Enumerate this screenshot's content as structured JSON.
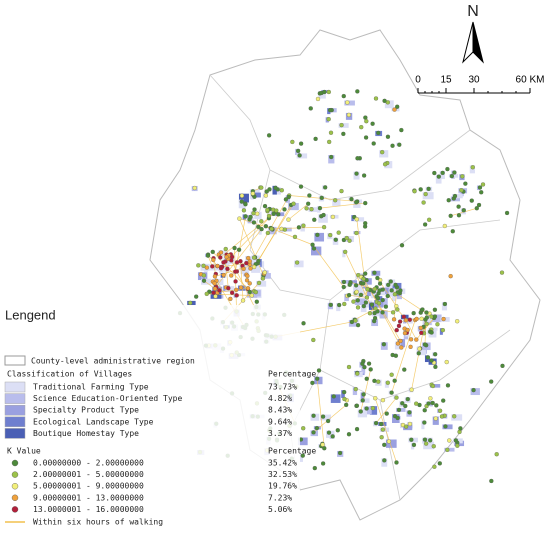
{
  "north_arrow": {
    "label": "N"
  },
  "scale_bar": {
    "labels": [
      "0",
      "15",
      "30",
      "60 KM"
    ]
  },
  "legend": {
    "title": "Lengend",
    "boundary": "County-level administrative region",
    "village_classification": {
      "title": "Classification of Villages",
      "percentage_header": "Percentage",
      "items": [
        {
          "label": "Traditional Farming Type",
          "percentage": "73.73%",
          "color": "#dcdff5"
        },
        {
          "label": "Science Education-Oriented Type",
          "percentage": "4.82%",
          "color": "#b9bdec"
        },
        {
          "label": "Specialty Product Type",
          "percentage": "8.43%",
          "color": "#9aa0e0"
        },
        {
          "label": "Ecological Landscape Type",
          "percentage": "9.64%",
          "color": "#6f7fcf"
        },
        {
          "label": "Boutique Homestay Type",
          "percentage": "3.37%",
          "color": "#4a5fb5"
        }
      ]
    },
    "k_value": {
      "title": "K Value",
      "percentage_header": "Percentage",
      "items": [
        {
          "label": "0.00000000 - 2.00000000",
          "percentage": "35.42%",
          "color": "#4d8a3a"
        },
        {
          "label": "2.00000001 - 5.00000000",
          "percentage": "32.53%",
          "color": "#9cc24a"
        },
        {
          "label": "5.00000001 - 9.00000000",
          "percentage": "19.76%",
          "color": "#f2ef7a"
        },
        {
          "label": "9.00000001 - 13.0000000",
          "percentage": "7.23%",
          "color": "#f0a23c"
        },
        {
          "label": "13.0000001 - 16.0000000",
          "percentage": "5.06%",
          "color": "#b2203a"
        }
      ]
    },
    "walking": "Within six hours of walking"
  }
}
